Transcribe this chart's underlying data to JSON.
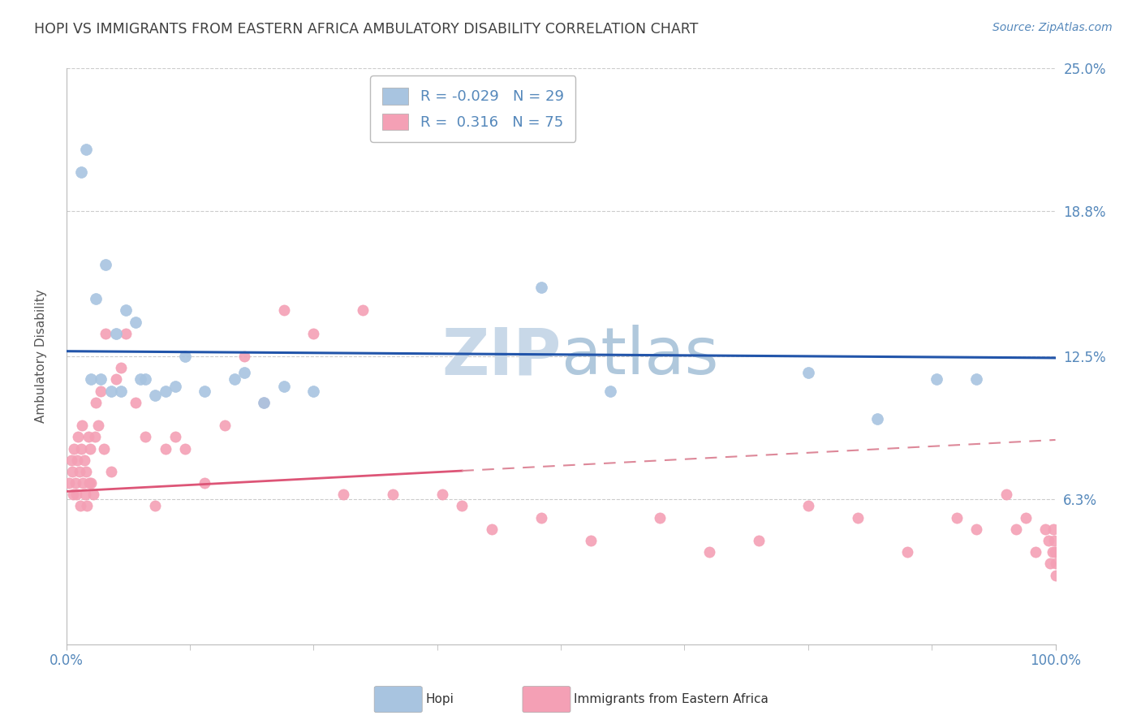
{
  "title": "HOPI VS IMMIGRANTS FROM EASTERN AFRICA AMBULATORY DISABILITY CORRELATION CHART",
  "source": "Source: ZipAtlas.com",
  "ylabel": "Ambulatory Disability",
  "xlim": [
    0.0,
    100.0
  ],
  "ylim": [
    0.0,
    25.0
  ],
  "yticks": [
    6.3,
    12.5,
    18.8,
    25.0
  ],
  "ytick_labels": [
    "6.3%",
    "12.5%",
    "18.8%",
    "25.0%"
  ],
  "hopi_color": "#a8c4e0",
  "hopi_edge_color": "#7aaac8",
  "immigrant_color": "#f4a0b5",
  "immigrant_edge_color": "#e07090",
  "trend_hopi_color": "#2255aa",
  "trend_imm_color": "#dd5577",
  "trend_imm_dash_color": "#dd8899",
  "hopi_R": -0.029,
  "hopi_N": 29,
  "immigrant_R": 0.316,
  "immigrant_N": 75,
  "legend_label_hopi": "Hopi",
  "legend_label_immigrant": "Immigrants from Eastern Africa",
  "hopi_scatter_x": [
    2.5,
    4.0,
    1.5,
    2.0,
    3.0,
    5.0,
    7.0,
    4.5,
    6.0,
    8.0,
    10.0,
    12.0,
    5.5,
    3.5,
    7.5,
    9.0,
    11.0,
    14.0,
    20.0,
    17.0,
    25.0,
    22.0,
    18.0,
    48.0,
    55.0,
    75.0,
    82.0,
    88.0,
    92.0
  ],
  "hopi_scatter_y": [
    11.5,
    16.5,
    20.5,
    21.5,
    15.0,
    13.5,
    14.0,
    11.0,
    14.5,
    11.5,
    11.0,
    12.5,
    11.0,
    11.5,
    11.5,
    10.8,
    11.2,
    11.0,
    10.5,
    11.5,
    11.0,
    11.2,
    11.8,
    15.5,
    11.0,
    11.8,
    9.8,
    11.5,
    11.5
  ],
  "immigrant_scatter_x": [
    0.3,
    0.5,
    0.6,
    0.7,
    0.8,
    0.9,
    1.0,
    1.1,
    1.2,
    1.3,
    1.4,
    1.5,
    1.6,
    1.7,
    1.8,
    1.9,
    2.0,
    2.1,
    2.2,
    2.3,
    2.4,
    2.5,
    2.7,
    2.9,
    3.0,
    3.2,
    3.5,
    3.8,
    4.0,
    4.5,
    5.0,
    5.5,
    6.0,
    7.0,
    8.0,
    9.0,
    10.0,
    11.0,
    12.0,
    14.0,
    16.0,
    18.0,
    20.0,
    22.0,
    25.0,
    28.0,
    30.0,
    33.0,
    38.0,
    40.0,
    43.0,
    48.0,
    53.0,
    60.0,
    65.0,
    70.0,
    75.0,
    80.0,
    85.0,
    90.0,
    92.0,
    95.0,
    96.0,
    97.0,
    98.0,
    99.0,
    99.3,
    99.5,
    99.7,
    99.8,
    99.9,
    99.95,
    100.0,
    100.0,
    100.0
  ],
  "immigrant_scatter_y": [
    7.0,
    8.0,
    7.5,
    6.5,
    8.5,
    7.0,
    6.5,
    8.0,
    9.0,
    7.5,
    6.0,
    8.5,
    9.5,
    7.0,
    8.0,
    6.5,
    7.5,
    6.0,
    9.0,
    7.0,
    8.5,
    7.0,
    6.5,
    9.0,
    10.5,
    9.5,
    11.0,
    8.5,
    13.5,
    7.5,
    11.5,
    12.0,
    13.5,
    10.5,
    9.0,
    6.0,
    8.5,
    9.0,
    8.5,
    7.0,
    9.5,
    12.5,
    10.5,
    14.5,
    13.5,
    6.5,
    14.5,
    6.5,
    6.5,
    6.0,
    5.0,
    5.5,
    4.5,
    5.5,
    4.0,
    4.5,
    6.0,
    5.5,
    4.0,
    5.5,
    5.0,
    6.5,
    5.0,
    5.5,
    4.0,
    5.0,
    4.5,
    3.5,
    4.0,
    5.0,
    4.5,
    4.0,
    3.5,
    3.0,
    4.0
  ],
  "grid_color": "#cccccc",
  "background_color": "#ffffff",
  "title_color": "#404040",
  "axis_color": "#5588bb",
  "watermark_zip_color": "#c8d8e8",
  "watermark_atlas_color": "#b0c8dc",
  "watermark_fontsize": 58
}
